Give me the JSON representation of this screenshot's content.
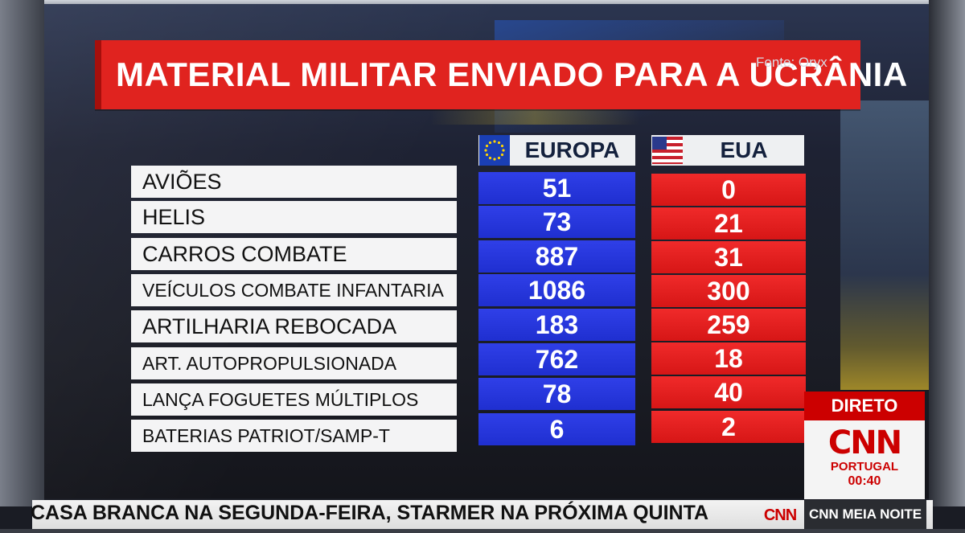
{
  "title": "MATERIAL MILITAR ENVIADO PARA A UCRÂNIA",
  "source": "Fonte: Oryx",
  "columns": {
    "europe": "EUROPA",
    "usa": "EUA"
  },
  "rows": [
    {
      "label": "AVIÕES",
      "europe": "51",
      "usa": "0"
    },
    {
      "label": "HELIS",
      "europe": "73",
      "usa": "21"
    },
    {
      "label": "CARROS COMBATE",
      "europe": "887",
      "usa": "31"
    },
    {
      "label": "VEÍCULOS COMBATE INFANTARIA",
      "europe": "1086",
      "usa": "300"
    },
    {
      "label": "ARTILHARIA REBOCADA",
      "europe": "183",
      "usa": "259"
    },
    {
      "label": "ART. AUTOPROPULSIONADA",
      "europe": "762",
      "usa": "18"
    },
    {
      "label": "LANÇA FOGUETES MÚLTIPLOS",
      "europe": "78",
      "usa": "40"
    },
    {
      "label": "BATERIAS PATRIOT/SAMP-T",
      "europe": "6",
      "usa": "2"
    }
  ],
  "broadcast": {
    "live_label": "DIRETO",
    "logo_text": "CNN",
    "region": "PORTUGAL",
    "time": "00:40",
    "ticker": "CASA BRANCA NA SEGUNDA-FEIRA, STARMER NA PRÓXIMA QUINTA",
    "ticker_logo": "CNN",
    "show_name": "CNN MEIA NOITE"
  },
  "colors": {
    "title_red": "#e0231f",
    "europe_blue": "#2338e0",
    "usa_red": "#e01f1f",
    "cnn_red": "#cc0000"
  },
  "icons": {
    "europe_flag": "eu-flag-icon",
    "usa_flag": "us-flag-icon"
  }
}
